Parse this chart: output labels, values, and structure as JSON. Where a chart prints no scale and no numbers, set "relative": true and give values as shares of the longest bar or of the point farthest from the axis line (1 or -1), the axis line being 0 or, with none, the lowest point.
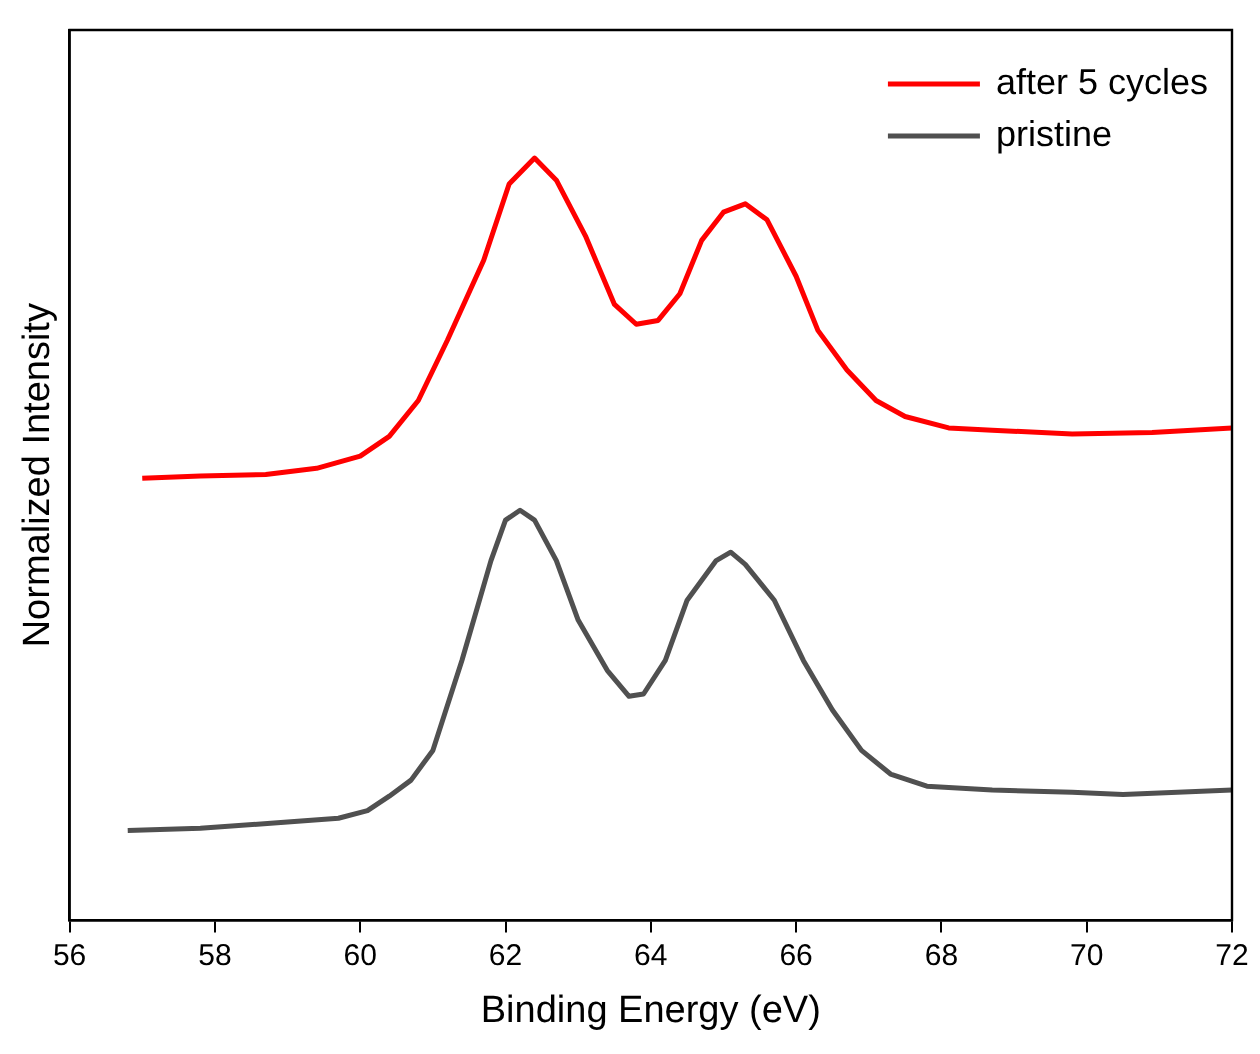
{
  "chart_data": {
    "type": "line",
    "xlabel": "Binding Energy (eV)",
    "ylabel": "Normalized Intensity",
    "relative": true,
    "xlim": [
      56,
      72
    ],
    "xticks": [
      56,
      58,
      60,
      62,
      64,
      66,
      68,
      70,
      72
    ],
    "legend": "top right",
    "grid": false,
    "marker": "none",
    "line_style": "solid",
    "series": [
      {
        "name": "after 5 cycles",
        "color": "#ff0000",
        "x": [
          57.0,
          57.8,
          58.7,
          59.4,
          60.0,
          60.4,
          60.8,
          61.2,
          61.7,
          62.05,
          62.4,
          62.7,
          63.1,
          63.5,
          63.8,
          64.1,
          64.4,
          64.7,
          65.0,
          65.3,
          65.6,
          66.0,
          66.3,
          66.7,
          67.1,
          67.5,
          68.1,
          68.7,
          69.8,
          70.9,
          72.0
        ],
        "values": [
          0.58,
          0.583,
          0.585,
          0.593,
          0.609,
          0.635,
          0.682,
          0.761,
          0.866,
          0.966,
          1.0,
          0.971,
          0.898,
          0.808,
          0.782,
          0.787,
          0.822,
          0.892,
          0.929,
          0.94,
          0.919,
          0.845,
          0.774,
          0.722,
          0.682,
          0.661,
          0.646,
          0.643,
          0.638,
          0.64,
          0.646
        ]
      },
      {
        "name": "pristine",
        "color": "#505050",
        "x": [
          56.8,
          57.8,
          59.0,
          59.7,
          60.1,
          60.4,
          60.7,
          61.0,
          61.4,
          61.8,
          62.0,
          62.2,
          62.4,
          62.7,
          63.0,
          63.4,
          63.7,
          63.9,
          64.2,
          64.5,
          64.9,
          65.1,
          65.3,
          65.7,
          66.1,
          66.5,
          66.9,
          67.3,
          67.8,
          68.7,
          69.8,
          70.5,
          72.0
        ],
        "values": [
          0.118,
          0.121,
          0.129,
          0.134,
          0.144,
          0.163,
          0.184,
          0.223,
          0.341,
          0.472,
          0.525,
          0.538,
          0.525,
          0.472,
          0.394,
          0.328,
          0.294,
          0.297,
          0.341,
          0.42,
          0.472,
          0.483,
          0.467,
          0.42,
          0.341,
          0.276,
          0.223,
          0.192,
          0.176,
          0.171,
          0.168,
          0.165,
          0.171
        ]
      }
    ]
  }
}
